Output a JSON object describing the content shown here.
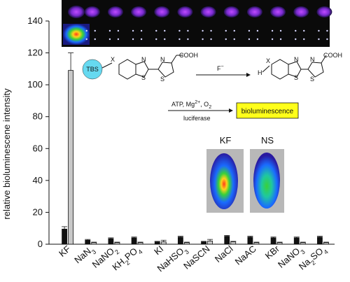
{
  "chart_data": {
    "type": "bar",
    "ylabel": "relative bioluminescene intensity",
    "xlabel": "",
    "ylim": [
      0,
      140
    ],
    "yticks": [
      0,
      20,
      40,
      60,
      80,
      100,
      120,
      140
    ],
    "categories": [
      {
        "base": "KF",
        "sub": ""
      },
      {
        "base": "NaN",
        "sub": "3"
      },
      {
        "base": "NaNO",
        "sub": "2"
      },
      {
        "base": "KH",
        "sub": "2",
        "base2": "PO",
        "sub2": "4"
      },
      {
        "base": "KI",
        "sub": ""
      },
      {
        "base": "NaHSO",
        "sub": "3"
      },
      {
        "base": "NaSCN",
        "sub": ""
      },
      {
        "base": "NaCl",
        "sub": ""
      },
      {
        "base": "NaAC",
        "sub": ""
      },
      {
        "base": "KBr",
        "sub": ""
      },
      {
        "base": "NaNO",
        "sub": "3"
      },
      {
        "base": "Na",
        "sub": "2",
        "base2": "SO",
        "sub2": "4"
      }
    ],
    "series": [
      {
        "color": "#111111",
        "values": [
          9.5,
          2.5,
          3.5,
          4.0,
          1.5,
          4.5,
          1.5,
          5.0,
          4.5,
          4.0,
          4.0,
          4.5
        ],
        "errors": [
          1.5,
          0.5,
          0.5,
          0.5,
          0.3,
          0.5,
          0.3,
          0.5,
          0.5,
          0.5,
          0.5,
          0.5
        ]
      },
      {
        "color": "#c8c8c8",
        "values": [
          109,
          1.0,
          1.0,
          1.0,
          1.5,
          1.0,
          2.0,
          1.5,
          1.0,
          1.0,
          1.0,
          1.0
        ],
        "errors": [
          11,
          0.3,
          0.3,
          0.3,
          1.0,
          0.3,
          1.0,
          0.3,
          0.3,
          0.3,
          0.3,
          0.3
        ]
      }
    ]
  },
  "scheme": {
    "tbs_label": "TBS",
    "x_label": "X",
    "h_label": "H",
    "x_label2": "X",
    "cooh": "COOH",
    "cooh2": "COOH",
    "reagent_top": "F",
    "reagent_mid": "ATP, Mg",
    "reagent_mid_sup": "2+",
    "reagent_mid_tail": ", O",
    "reagent_mid_sub": "2",
    "reagent_bottom": "luciferase",
    "product_box": "bioluminescence",
    "s": "S",
    "n": "N"
  },
  "mice": {
    "left_label": "KF",
    "right_label": "NS"
  },
  "colors": {
    "tbs_circle": "#66d9f0",
    "product_box": "#ffff1a",
    "strip_bg": "#0a0a0a"
  }
}
